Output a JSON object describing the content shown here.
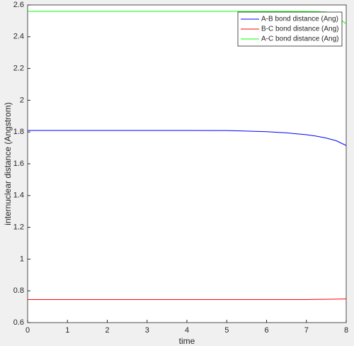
{
  "chart_data": {
    "type": "line",
    "xlabel": "time",
    "ylabel": "internuclear distance (Angstrom)",
    "x": [
      0,
      1,
      2,
      3,
      4,
      5,
      5.5,
      6,
      6.5,
      7,
      7.25,
      7.5,
      7.75,
      8
    ],
    "series": [
      {
        "name": "A-B bond distance (Ang)",
        "color": "#0000ff",
        "values": [
          1.81,
          1.81,
          1.81,
          1.81,
          1.81,
          1.809,
          1.806,
          1.802,
          1.795,
          1.783,
          1.774,
          1.762,
          1.745,
          1.715
        ]
      },
      {
        "name": "B-C bond distance (Ang)",
        "color": "#ff0000",
        "values": [
          0.745,
          0.745,
          0.745,
          0.745,
          0.745,
          0.745,
          0.745,
          0.745,
          0.745,
          0.745,
          0.746,
          0.747,
          0.748,
          0.749
        ]
      },
      {
        "name": "A-C bond distance (Ang)",
        "color": "#00ff00",
        "values": [
          2.56,
          2.56,
          2.56,
          2.56,
          2.56,
          2.56,
          2.56,
          2.56,
          2.56,
          2.559,
          2.558,
          2.556,
          2.53,
          2.48
        ]
      }
    ],
    "xlim": [
      0,
      8
    ],
    "xticks": [
      0,
      1,
      2,
      3,
      4,
      5,
      6,
      7,
      8
    ],
    "ylim": [
      0.6,
      2.6
    ],
    "yticks": [
      0.6,
      0.8,
      1,
      1.2,
      1.4,
      1.6,
      1.8,
      2,
      2.2,
      2.4,
      2.6
    ],
    "legend": "top-right"
  }
}
